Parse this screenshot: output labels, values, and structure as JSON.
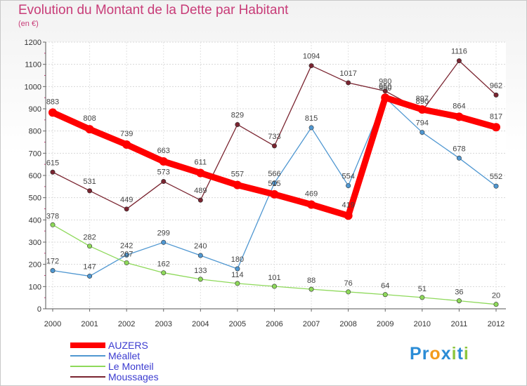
{
  "header": {
    "title": "Evolution du Montant de la Dette par Habitant",
    "subtitle": "(en €)"
  },
  "logo": {
    "text": "Proxiti",
    "letters": [
      "P",
      "r",
      "o",
      "x",
      "i",
      "t",
      "i"
    ],
    "colors": [
      "#2b8cd6",
      "#2b8cd6",
      "#f39b1c",
      "#2b8cd6",
      "#8dc63f",
      "#2b8cd6",
      "#8dc63f"
    ]
  },
  "chart_data": {
    "type": "line",
    "title": "Evolution du Montant de la Dette par Habitant",
    "subtitle": "(en €)",
    "x": [
      "2000",
      "2001",
      "2002",
      "2003",
      "2004",
      "2005",
      "2006",
      "2007",
      "2008",
      "2009",
      "2010",
      "2011",
      "2012"
    ],
    "ylim": [
      0,
      1200
    ],
    "yticks": [
      0,
      100,
      200,
      300,
      400,
      500,
      600,
      700,
      800,
      900,
      1000,
      1100,
      1200
    ],
    "grid": true,
    "legend_position": "bottom-left",
    "series": [
      {
        "name": "AUZERS",
        "color": "#ff0000",
        "values": [
          883,
          808,
          739,
          663,
          611,
          557,
          515,
          469,
          419,
          950,
          897,
          864,
          817
        ]
      },
      {
        "name": "Méallet",
        "color": "#4f97d1",
        "values": [
          172,
          147,
          242,
          299,
          240,
          180,
          566,
          815,
          554,
          950,
          794,
          678,
          552
        ]
      },
      {
        "name": "Le Monteil",
        "color": "#8ed95a",
        "values": [
          378,
          282,
          207,
          162,
          133,
          114,
          101,
          88,
          76,
          64,
          51,
          36,
          20
        ]
      },
      {
        "name": "Moussages",
        "color": "#7a2430",
        "values": [
          615,
          531,
          449,
          573,
          489,
          829,
          733,
          1094,
          1017,
          980,
          890,
          1116,
          962
        ]
      }
    ]
  }
}
